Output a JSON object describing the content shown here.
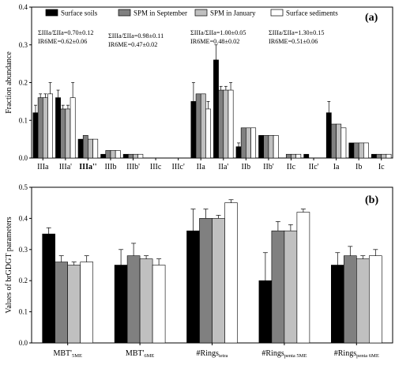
{
  "legend": [
    {
      "name": "Surface soils",
      "color": "#000000"
    },
    {
      "name": "SPM in September",
      "color": "#808080"
    },
    {
      "name": "SPM in January",
      "color": "#c0c0c0"
    },
    {
      "name": "Surface sediments",
      "color": "#ffffff"
    }
  ],
  "chart_data": [
    {
      "type": "bar",
      "panel_label": "(a)",
      "ylabel": "Fraction abundance",
      "ylim": [
        0,
        0.4
      ],
      "yticks": [
        "0.0",
        "0.1",
        "0.2",
        "0.3",
        "0.4"
      ],
      "categories": [
        "IIIa",
        "IIIa'",
        "IIIa''",
        "IIIb",
        "IIIb'",
        "IIIc",
        "IIIc'",
        "IIa",
        "IIa'",
        "IIb",
        "IIb'",
        "IIc",
        "IIc'",
        "Ia",
        "Ib",
        "Ic"
      ],
      "series": [
        {
          "name": "Surface soils",
          "values": [
            0.12,
            0.16,
            0.05,
            0.01,
            0.01,
            0,
            0,
            0.15,
            0.26,
            0.03,
            0.06,
            0,
            0.01,
            0.12,
            0.04,
            0.01
          ],
          "errors": [
            0.02,
            0.02,
            0,
            0,
            0,
            0,
            0,
            0.05,
            0.04,
            0.01,
            0,
            0,
            0,
            0.03,
            0,
            0
          ]
        },
        {
          "name": "SPM in September",
          "values": [
            0.16,
            0.13,
            0.06,
            0.02,
            0.01,
            0,
            0,
            0.17,
            0.18,
            0.08,
            0.06,
            0.01,
            0,
            0.09,
            0.04,
            0.01
          ],
          "errors": [
            0.01,
            0.01,
            0,
            0,
            0,
            0,
            0,
            0,
            0.01,
            0,
            0,
            0,
            0,
            0,
            0,
            0
          ]
        },
        {
          "name": "SPM in January",
          "values": [
            0.16,
            0.13,
            0.05,
            0.02,
            0.01,
            0,
            0,
            0.17,
            0.18,
            0.08,
            0.06,
            0.01,
            0,
            0.09,
            0.04,
            0.01
          ],
          "errors": [
            0.01,
            0.01,
            0,
            0,
            0,
            0,
            0,
            0,
            0.01,
            0,
            0,
            0,
            0,
            0,
            0,
            0
          ]
        },
        {
          "name": "Surface sediments",
          "values": [
            0.17,
            0.16,
            0.05,
            0.02,
            0.01,
            0,
            0,
            0.13,
            0.18,
            0.08,
            0.06,
            0.01,
            0,
            0.08,
            0.04,
            0.01
          ],
          "errors": [
            0.03,
            0.04,
            0,
            0,
            0,
            0,
            0,
            0.02,
            0.02,
            0,
            0,
            0,
            0,
            0,
            0,
            0
          ]
        }
      ],
      "bold_categories": [
        "IIIa''"
      ],
      "annotations": [
        {
          "line1": "ΣIIIa/ΣIIa=0.70±0.12",
          "line2": "IR6ME=0.62±0.06"
        },
        {
          "line1": "ΣIIIa/ΣIIa=0.98±0.11",
          "line2": "IR6ME=0.47±0.02"
        },
        {
          "line1": "ΣIIIa/ΣIIa=1.00±0.05",
          "line2": "IR6ME=0.48±0.02"
        },
        {
          "line1": "ΣIIIa/ΣIIa=1.30±0.15",
          "line2": "IR6ME=0.51±0.06"
        }
      ]
    },
    {
      "type": "bar",
      "panel_label": "(b)",
      "ylabel": "Values of brGDGT parameters",
      "ylim": [
        0,
        0.5
      ],
      "yticks": [
        "0.0",
        "0.1",
        "0.2",
        "0.3",
        "0.4",
        "0.5"
      ],
      "categories": [
        {
          "main": "MBT'",
          "sub": "5ME"
        },
        {
          "main": "MBT'",
          "sub": "6ME"
        },
        {
          "main": "#Rings",
          "sub": "tetra"
        },
        {
          "main": "#Rings",
          "sub": "penta 5ME"
        },
        {
          "main": "#Rings",
          "sub": "penta 6ME"
        }
      ],
      "series": [
        {
          "name": "Surface soils",
          "values": [
            0.35,
            0.25,
            0.36,
            0.2,
            0.25
          ],
          "errors": [
            0.02,
            0.05,
            0.07,
            0.09,
            0.04
          ]
        },
        {
          "name": "SPM in September",
          "values": [
            0.26,
            0.28,
            0.4,
            0.36,
            0.28
          ],
          "errors": [
            0.02,
            0.04,
            0.03,
            0.03,
            0.03
          ]
        },
        {
          "name": "SPM in January",
          "values": [
            0.25,
            0.27,
            0.4,
            0.36,
            0.27
          ],
          "errors": [
            0.01,
            0.01,
            0.01,
            0.02,
            0.01
          ]
        },
        {
          "name": "Surface sediments",
          "values": [
            0.26,
            0.25,
            0.45,
            0.42,
            0.28
          ],
          "errors": [
            0.02,
            0.02,
            0.01,
            0.01,
            0.02
          ]
        }
      ]
    }
  ]
}
